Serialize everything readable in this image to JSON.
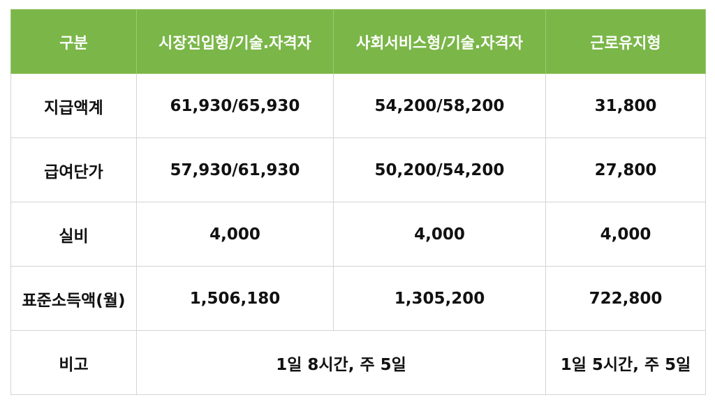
{
  "table": {
    "headers": [
      "구분",
      "시장진입형/기술.자격자",
      "사회서비스형/기술.자격자",
      "근로유지형"
    ],
    "rows": [
      {
        "label": "지급액계",
        "market": "61,930/65,930",
        "social": "54,200/58,200",
        "maintain": "31,800"
      },
      {
        "label": "급여단가",
        "market": "57,930/61,930",
        "social": "50,200/54,200",
        "maintain": "27,800"
      },
      {
        "label": "실비",
        "market": "4,000",
        "social": "4,000",
        "maintain": "4,000"
      },
      {
        "label": "표준소득액(월)",
        "market": "1,506,180",
        "social": "1,305,200",
        "maintain": "722,800"
      }
    ],
    "note": {
      "label": "비고",
      "market_social": "1일 8시간, 주 5일",
      "maintain": "1일 5시간, 주 5일"
    }
  },
  "colors": {
    "header_background": "#7ab648",
    "header_text": "#ffffff",
    "grid_line": "#d4d4d4"
  }
}
